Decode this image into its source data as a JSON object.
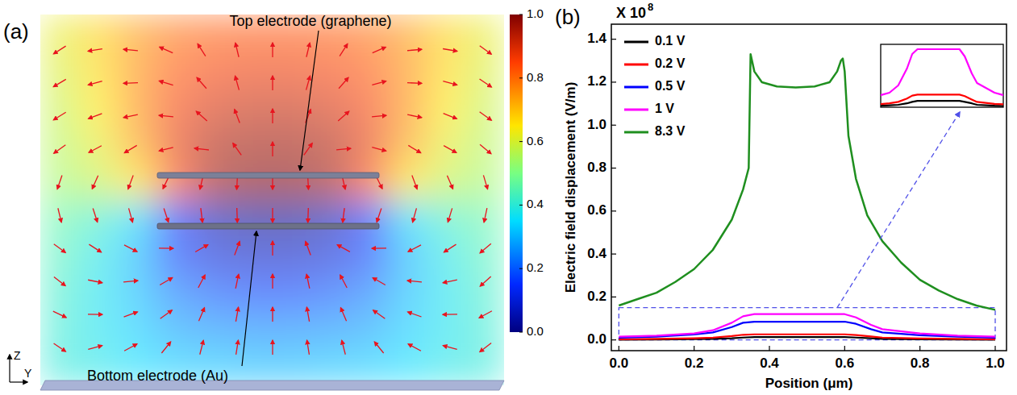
{
  "chart_data": [
    {
      "type": "heatmap",
      "panel": "(a)",
      "cells": [
        [
          0.62,
          0.68,
          0.75,
          0.8,
          0.82,
          0.83,
          0.83,
          0.82,
          0.8,
          0.75,
          0.68,
          0.62
        ],
        [
          0.6,
          0.67,
          0.76,
          0.83,
          0.86,
          0.87,
          0.87,
          0.86,
          0.83,
          0.76,
          0.67,
          0.6
        ],
        [
          0.58,
          0.65,
          0.76,
          0.86,
          0.9,
          0.92,
          0.92,
          0.9,
          0.86,
          0.76,
          0.65,
          0.58
        ],
        [
          0.56,
          0.62,
          0.74,
          0.88,
          0.95,
          0.97,
          0.97,
          0.95,
          0.88,
          0.74,
          0.62,
          0.56
        ],
        [
          0.54,
          0.58,
          0.66,
          0.85,
          0.97,
          1.0,
          1.0,
          0.97,
          0.85,
          0.66,
          0.58,
          0.54
        ],
        [
          0.46,
          0.42,
          0.34,
          0.15,
          0.05,
          0.02,
          0.02,
          0.05,
          0.15,
          0.34,
          0.42,
          0.46
        ],
        [
          0.44,
          0.38,
          0.3,
          0.16,
          0.1,
          0.08,
          0.08,
          0.1,
          0.16,
          0.3,
          0.38,
          0.44
        ],
        [
          0.42,
          0.37,
          0.31,
          0.23,
          0.19,
          0.17,
          0.17,
          0.19,
          0.23,
          0.31,
          0.37,
          0.42
        ],
        [
          0.41,
          0.37,
          0.33,
          0.28,
          0.26,
          0.25,
          0.25,
          0.26,
          0.28,
          0.33,
          0.37,
          0.41
        ],
        [
          0.4,
          0.38,
          0.35,
          0.33,
          0.32,
          0.31,
          0.31,
          0.32,
          0.33,
          0.35,
          0.38,
          0.4
        ]
      ],
      "colorbar": {
        "range": [
          0,
          1
        ],
        "ticks": [
          {
            "value": 0,
            "label": "0.0"
          },
          0.2,
          0.4,
          0.6,
          0.8,
          {
            "value": 1,
            "label": "1.0"
          }
        ]
      },
      "annotations": [
        "Top electrode (graphene)",
        "Bottom electrode (Au)"
      ],
      "axis_labels": [
        "Z",
        "Y"
      ]
    },
    {
      "type": "line",
      "panel": "(b)",
      "x_label": "Position (μm)",
      "y_label": "Electric field displacement (V/m)",
      "y_multiplier": {
        "base": "X 10",
        "exponent": "8"
      },
      "xlim": [
        -0.02,
        1.03
      ],
      "ylim": [
        -0.05,
        1.47
      ],
      "xticks": [
        {
          "value": 0,
          "label": "0.0"
        },
        0.2,
        0.4,
        0.6,
        0.8,
        {
          "value": 1,
          "label": "1.0"
        }
      ],
      "yticks": [
        {
          "value": 0,
          "label": "0.0"
        },
        0.2,
        0.4,
        0.6,
        0.8,
        {
          "value": 1,
          "label": "1.0"
        },
        1.2,
        1.4
      ],
      "legend": "top left",
      "series": [
        {
          "name": "0.1 V",
          "color": "#000000",
          "x": [
            0,
            0.1,
            0.2,
            0.25,
            0.3,
            0.33,
            0.36,
            0.45,
            0.55,
            0.6,
            0.63,
            0.67,
            0.7,
            0.8,
            0.9,
            1.0
          ],
          "values": [
            0.001,
            0.002,
            0.004,
            0.005,
            0.008,
            0.011,
            0.013,
            0.013,
            0.013,
            0.013,
            0.011,
            0.008,
            0.005,
            0.003,
            0.002,
            0.001
          ]
        },
        {
          "name": "0.2 V",
          "color": "#ff0000",
          "x": [
            0,
            0.1,
            0.2,
            0.25,
            0.3,
            0.33,
            0.36,
            0.45,
            0.55,
            0.6,
            0.63,
            0.67,
            0.7,
            0.8,
            0.9,
            1.0
          ],
          "values": [
            0.003,
            0.005,
            0.008,
            0.011,
            0.018,
            0.024,
            0.026,
            0.026,
            0.026,
            0.026,
            0.023,
            0.016,
            0.011,
            0.007,
            0.005,
            0.003
          ]
        },
        {
          "name": "0.5 V",
          "color": "#0000ff",
          "x": [
            0,
            0.1,
            0.2,
            0.25,
            0.3,
            0.33,
            0.36,
            0.45,
            0.55,
            0.6,
            0.63,
            0.67,
            0.7,
            0.8,
            0.9,
            1.0
          ],
          "values": [
            0.01,
            0.015,
            0.025,
            0.035,
            0.06,
            0.08,
            0.085,
            0.085,
            0.085,
            0.085,
            0.075,
            0.05,
            0.035,
            0.022,
            0.015,
            0.01
          ]
        },
        {
          "name": "1 V",
          "color": "#ff00ff",
          "x": [
            0,
            0.1,
            0.2,
            0.25,
            0.3,
            0.33,
            0.36,
            0.45,
            0.55,
            0.6,
            0.63,
            0.67,
            0.7,
            0.8,
            0.9,
            1.0
          ],
          "values": [
            0.015,
            0.02,
            0.03,
            0.045,
            0.08,
            0.11,
            0.12,
            0.12,
            0.12,
            0.12,
            0.105,
            0.07,
            0.05,
            0.03,
            0.02,
            0.015
          ]
        },
        {
          "name": "8.3 V",
          "color": "#1f8f1f",
          "x": [
            0,
            0.05,
            0.1,
            0.15,
            0.2,
            0.25,
            0.3,
            0.33,
            0.345,
            0.35,
            0.36,
            0.38,
            0.42,
            0.47,
            0.52,
            0.56,
            0.58,
            0.59,
            0.595,
            0.6,
            0.61,
            0.63,
            0.66,
            0.7,
            0.75,
            0.8,
            0.85,
            0.9,
            0.95,
            1.0
          ],
          "values": [
            0.16,
            0.19,
            0.22,
            0.27,
            0.33,
            0.42,
            0.56,
            0.7,
            0.8,
            1.33,
            1.25,
            1.2,
            1.18,
            1.175,
            1.18,
            1.2,
            1.25,
            1.3,
            1.31,
            1.25,
            0.95,
            0.75,
            0.58,
            0.46,
            0.36,
            0.28,
            0.23,
            0.19,
            0.16,
            0.14
          ]
        }
      ],
      "zoom_box": {
        "xlim": [
          0,
          1
        ],
        "ylim": [
          0,
          0.15
        ]
      },
      "inset": {
        "xlim": [
          0.15,
          0.85
        ],
        "ylim": [
          0,
          0.13
        ],
        "series": [
          "0.1 V",
          "0.2 V",
          "1 V"
        ]
      }
    }
  ]
}
